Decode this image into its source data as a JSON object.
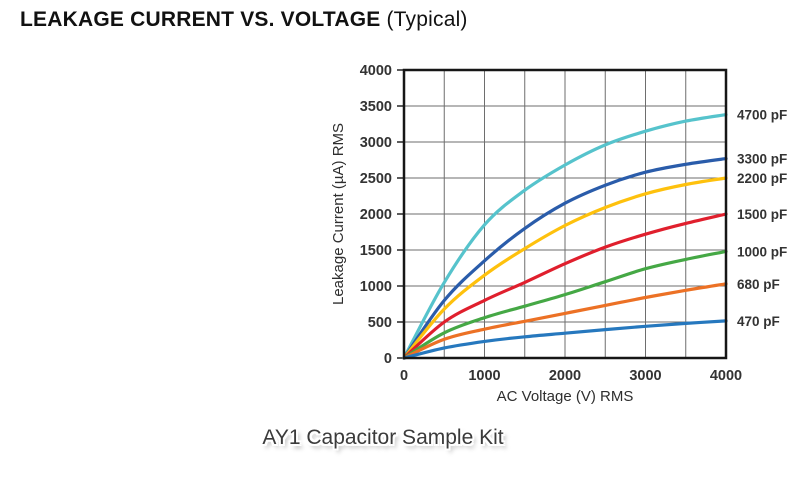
{
  "header": {
    "title_main": "LEAKAGE CURRENT VS. VOLTAGE",
    "title_suffix": "(Typical)"
  },
  "caption": {
    "text": "AY1 Capacitor Sample Kit"
  },
  "chart_data": {
    "type": "line",
    "title": "LEAKAGE CURRENT VS. VOLTAGE (Typical)",
    "xlabel": "AC Voltage (V) RMS",
    "ylabel": "Leakage Current (µA) RMS",
    "xlim": [
      0,
      4000
    ],
    "ylim": [
      0,
      4000
    ],
    "x_tick_labels": [
      0,
      1000,
      2000,
      3000,
      4000
    ],
    "y_tick_labels": [
      0,
      500,
      1000,
      1500,
      2000,
      2500,
      3000,
      3500,
      4000
    ],
    "grid": true,
    "grid_interval": 500,
    "legend_position": "right-outside",
    "x": [
      0,
      500,
      1000,
      1500,
      2000,
      2500,
      3000,
      3500,
      4000
    ],
    "series": [
      {
        "name": "4700 pF",
        "color": "#56C3CC",
        "values": [
          0,
          1050,
          1850,
          2330,
          2680,
          2960,
          3150,
          3290,
          3380
        ]
      },
      {
        "name": "3300 pF",
        "color": "#2A5CAA",
        "values": [
          0,
          800,
          1350,
          1800,
          2150,
          2400,
          2580,
          2690,
          2770
        ]
      },
      {
        "name": "2200 pF",
        "color": "#FEC10D",
        "values": [
          0,
          680,
          1150,
          1520,
          1840,
          2090,
          2280,
          2410,
          2500
        ]
      },
      {
        "name": "1500 pF",
        "color": "#E01F2D",
        "values": [
          0,
          500,
          800,
          1050,
          1310,
          1540,
          1720,
          1870,
          2000
        ]
      },
      {
        "name": "1000 pF",
        "color": "#45A845",
        "values": [
          0,
          350,
          560,
          720,
          880,
          1060,
          1240,
          1370,
          1480
        ]
      },
      {
        "name": "680 pF",
        "color": "#EC7125",
        "values": [
          0,
          260,
          400,
          510,
          620,
          730,
          840,
          940,
          1030
        ]
      },
      {
        "name": "470 pF",
        "color": "#2678BE",
        "values": [
          0,
          140,
          230,
          295,
          345,
          395,
          440,
          480,
          515
        ]
      }
    ],
    "frame_color": "#161616",
    "grid_color": "#6e6e6e",
    "text_color": "#333333"
  }
}
